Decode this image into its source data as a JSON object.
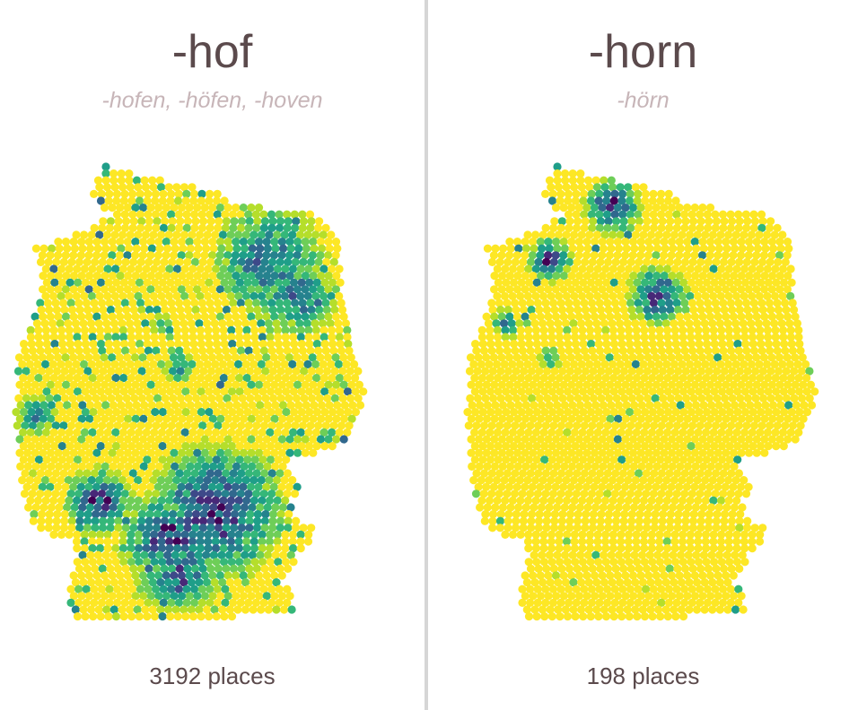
{
  "panels": [
    {
      "suffix": "-hof",
      "variants": "-hofen, -höfen, -hoven",
      "count": "3192",
      "count_unit": "places"
    },
    {
      "suffix": "-horn",
      "variants": "-hörn",
      "count": "198",
      "count_unit": "places"
    }
  ],
  "colors": {
    "scale": [
      "#fde725",
      "#b5de2b",
      "#6ece58",
      "#35b779",
      "#1f9e89",
      "#26828e",
      "#31688e",
      "#3e4989",
      "#482878",
      "#440154"
    ],
    "title": "#5b4a4c",
    "subtitle": "#c7b5b8",
    "divider": "#d6d6d6"
  },
  "legend": "none",
  "map": {
    "region": "Germany",
    "cell_shape": "hexagon"
  }
}
